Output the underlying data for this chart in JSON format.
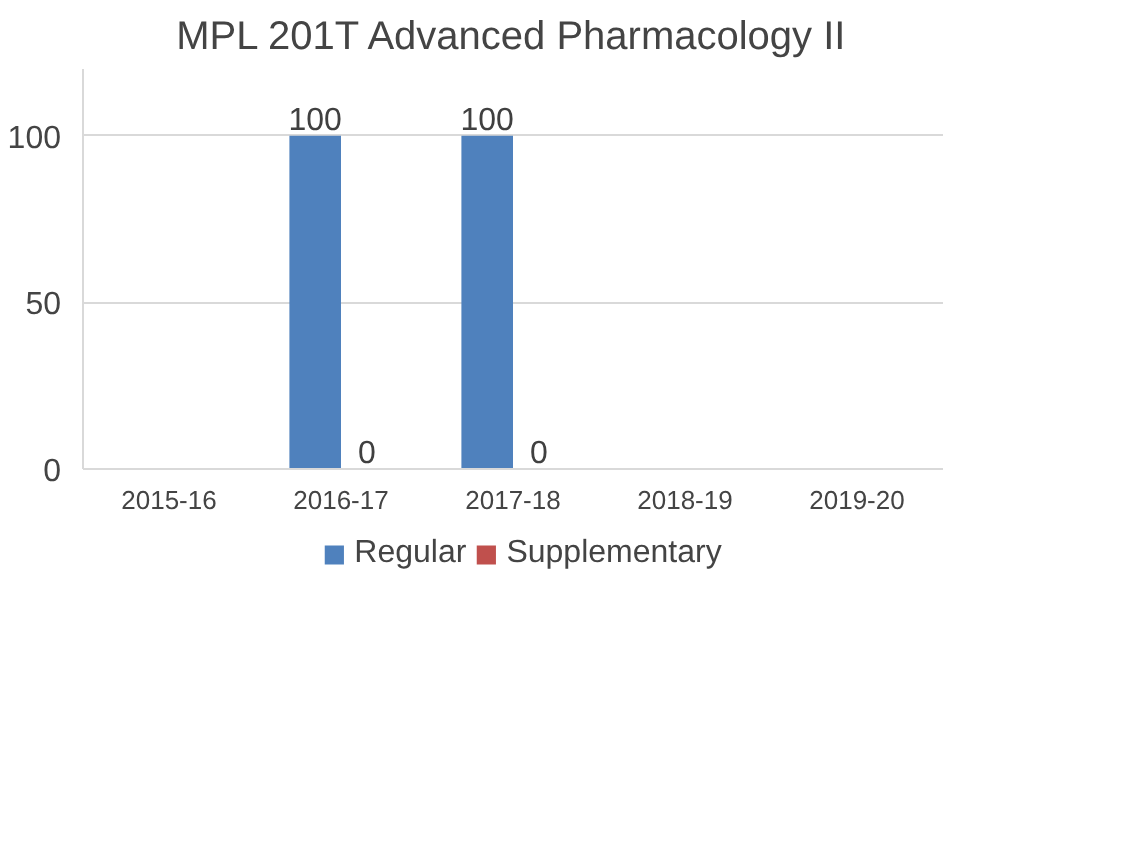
{
  "chart_data": {
    "type": "bar",
    "title": "MPL 201T Advanced Pharmacology II",
    "categories": [
      "2015-16",
      "2016-17",
      "2017-18",
      "2018-19",
      "2019-20"
    ],
    "series": [
      {
        "name": "Regular",
        "color": "#4f81bd",
        "values": [
          null,
          100,
          100,
          null,
          null
        ]
      },
      {
        "name": "Supplementary",
        "color": "#c0504d",
        "values": [
          null,
          0,
          0,
          null,
          null
        ]
      }
    ],
    "ylim": [
      0,
      120
    ],
    "yticks": [
      0,
      50,
      100
    ],
    "grid": "y",
    "legend": "bottom",
    "data_labels": true
  }
}
